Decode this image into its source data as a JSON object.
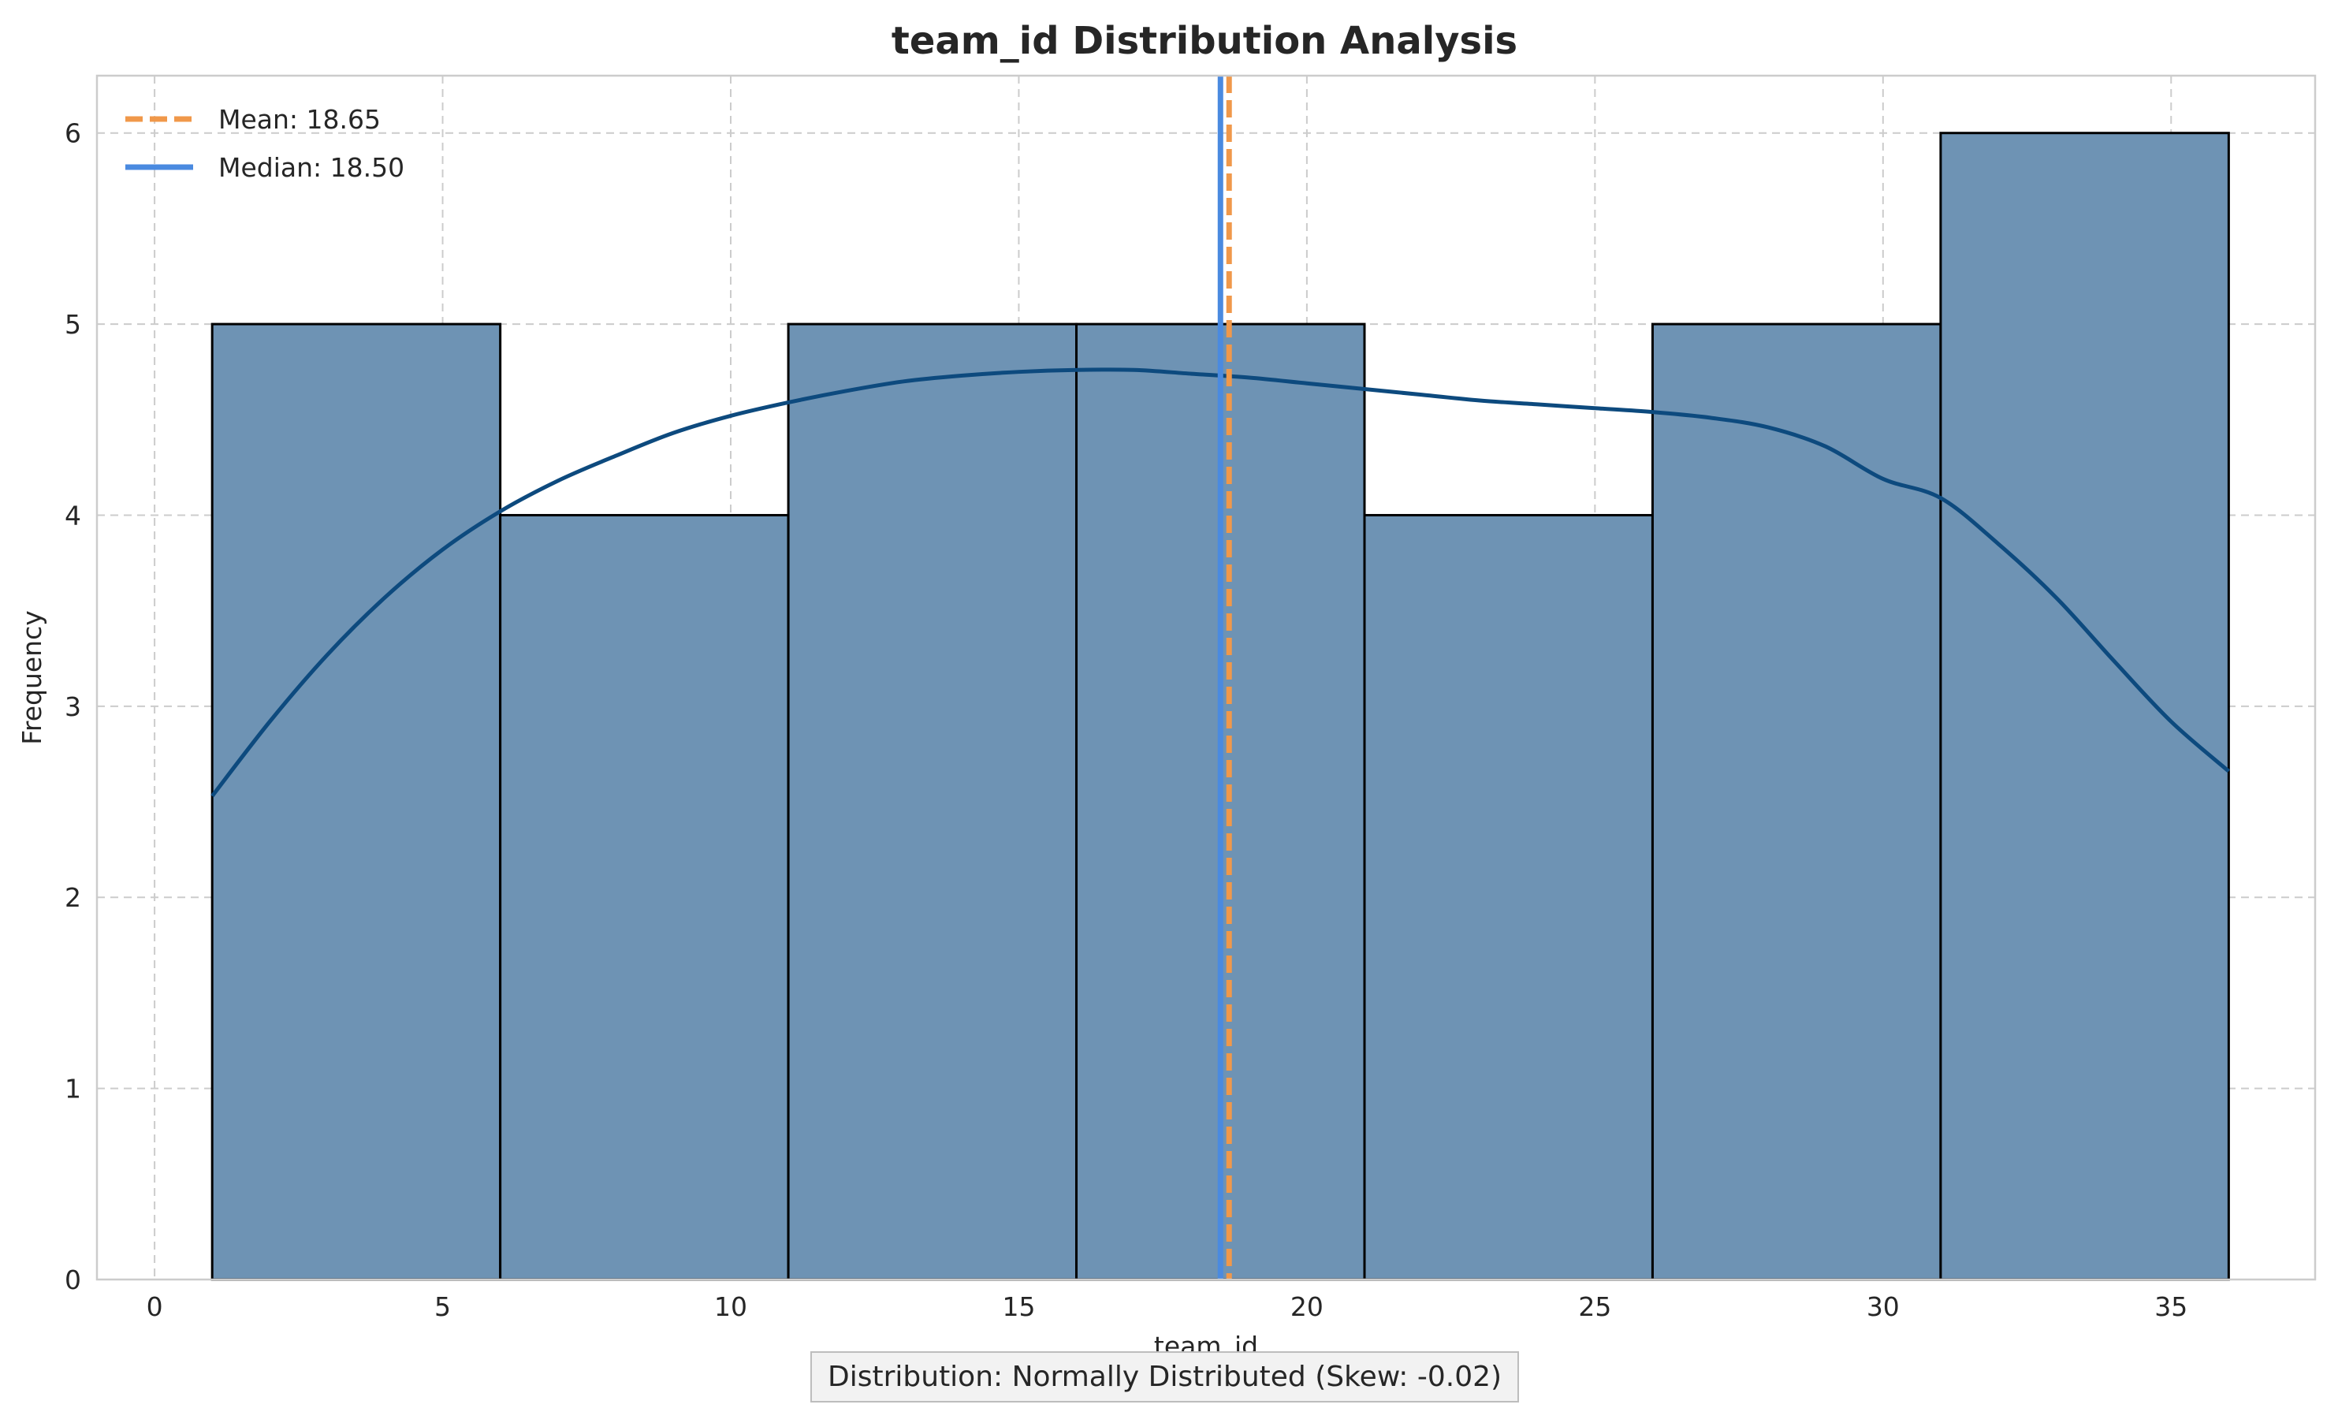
{
  "chart_data": {
    "type": "bar",
    "title": "team_id Distribution Analysis",
    "xlabel": "team_id",
    "ylabel": "Frequency",
    "xlim": [
      -1,
      37.5
    ],
    "ylim": [
      0,
      6.3
    ],
    "xticks": [
      0,
      5,
      10,
      15,
      20,
      25,
      30,
      35
    ],
    "yticks": [
      0,
      1,
      2,
      3,
      4,
      5,
      6
    ],
    "grid": true,
    "bins": [
      {
        "start": 1,
        "end": 6,
        "count": 5
      },
      {
        "start": 6,
        "end": 11,
        "count": 4
      },
      {
        "start": 11,
        "end": 16,
        "count": 5
      },
      {
        "start": 16,
        "end": 21,
        "count": 5
      },
      {
        "start": 21,
        "end": 26,
        "count": 4
      },
      {
        "start": 26,
        "end": 31,
        "count": 5
      },
      {
        "start": 31,
        "end": 36,
        "count": 6
      }
    ],
    "kde": {
      "x": [
        1,
        2,
        3,
        4,
        5,
        6,
        7,
        8,
        9,
        10,
        11,
        12,
        13,
        14,
        15,
        16,
        17,
        18,
        19,
        20,
        21,
        22,
        23,
        24,
        25,
        26,
        27,
        28,
        29,
        30,
        31,
        32,
        33,
        34,
        35,
        36
      ],
      "y": [
        2.53,
        2.92,
        3.27,
        3.57,
        3.82,
        4.02,
        4.18,
        4.31,
        4.43,
        4.52,
        4.59,
        4.65,
        4.7,
        4.73,
        4.75,
        4.76,
        4.76,
        4.74,
        4.72,
        4.69,
        4.66,
        4.63,
        4.6,
        4.58,
        4.56,
        4.54,
        4.51,
        4.46,
        4.36,
        4.19,
        4.09,
        3.85,
        3.57,
        3.24,
        2.92,
        2.66
      ]
    },
    "mean": 18.65,
    "median": 18.5,
    "legend": {
      "placement": "top-left",
      "entries": [
        {
          "label": "Mean: 18.65",
          "style": "dashed",
          "color": "#f0984a"
        },
        {
          "label": "Median: 18.50",
          "style": "solid",
          "color": "#4a8ae0"
        }
      ]
    },
    "annotation": "Distribution: Normally Distributed (Skew: -0.02)",
    "colors": {
      "bar_fill": "#6e93b4",
      "bar_edge": "#000000",
      "kde": "#0d4a7e",
      "mean": "#f0984a",
      "median": "#4a8ae0"
    }
  }
}
